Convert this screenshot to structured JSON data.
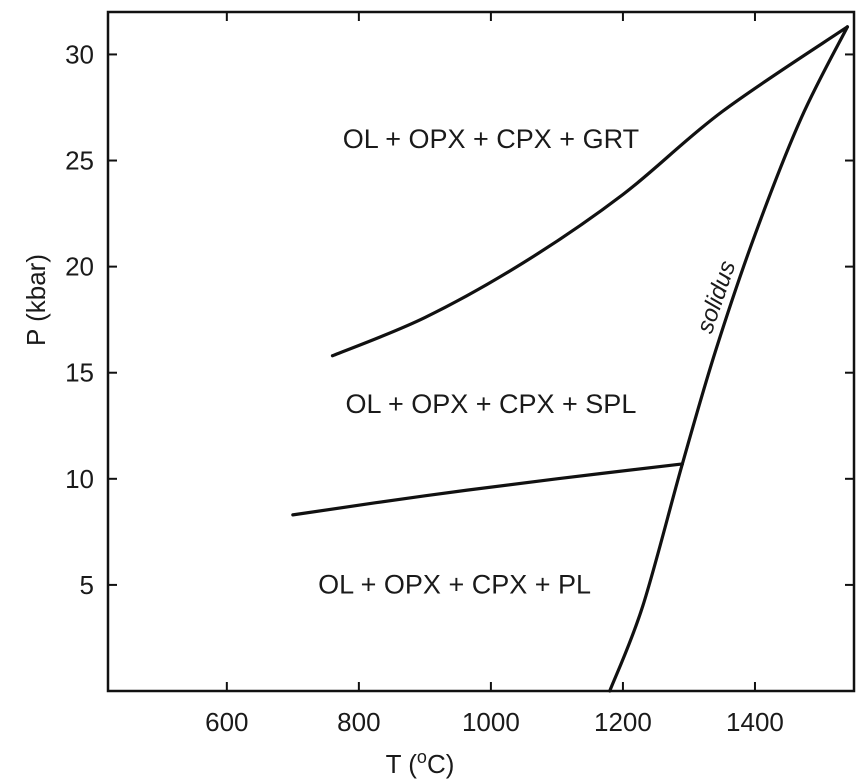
{
  "chart_data": {
    "type": "line",
    "title": "",
    "xlabel": "T (",
    "xlabel_superscript": "o",
    "xlabel_unit": "C)",
    "ylabel": "P (kbar)",
    "xlim": [
      420,
      1550
    ],
    "ylim": [
      0,
      32
    ],
    "x_ticks": [
      600,
      800,
      1000,
      1200,
      1400
    ],
    "y_ticks": [
      5,
      10,
      15,
      20,
      25,
      30
    ],
    "grid": false,
    "colors": {
      "line": "#111111",
      "text": "#1a1a1a",
      "background": "#ffffff"
    },
    "series": [
      {
        "name": "solidus",
        "points": [
          [
            1180,
            0
          ],
          [
            1230,
            4
          ],
          [
            1290,
            10.7
          ],
          [
            1340,
            16
          ],
          [
            1400,
            21.5
          ],
          [
            1470,
            27
          ],
          [
            1540,
            31.3
          ]
        ]
      },
      {
        "name": "",
        "points": [
          [
            760,
            15.8
          ],
          [
            900,
            17.6
          ],
          [
            1050,
            20.2
          ],
          [
            1200,
            23.4
          ],
          [
            1350,
            27.3
          ],
          [
            1540,
            31.3
          ]
        ]
      },
      {
        "name": "",
        "points": [
          [
            700,
            8.3
          ],
          [
            900,
            9.2
          ],
          [
            1100,
            10.0
          ],
          [
            1290,
            10.7
          ]
        ]
      }
    ],
    "field_labels": [
      {
        "text": "OL + OPX + CPX + GRT",
        "x": 1000,
        "y": 25.6
      },
      {
        "text": "OL + OPX + CPX + SPL",
        "x": 1000,
        "y": 13.1
      },
      {
        "text": "OL + OPX + CPX + PL",
        "x": 945,
        "y": 4.6
      }
    ]
  }
}
